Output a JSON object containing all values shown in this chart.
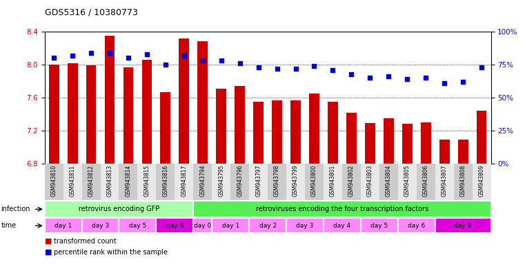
{
  "title": "GDS5316 / 10380773",
  "samples": [
    "GSM943810",
    "GSM943811",
    "GSM943812",
    "GSM943813",
    "GSM943814",
    "GSM943815",
    "GSM943816",
    "GSM943817",
    "GSM943794",
    "GSM943795",
    "GSM943796",
    "GSM943797",
    "GSM943798",
    "GSM943799",
    "GSM943800",
    "GSM943801",
    "GSM943802",
    "GSM943803",
    "GSM943804",
    "GSM943805",
    "GSM943806",
    "GSM943807",
    "GSM943808",
    "GSM943809"
  ],
  "bar_values": [
    8.0,
    8.02,
    7.99,
    8.35,
    7.97,
    8.06,
    7.67,
    8.32,
    8.28,
    7.71,
    7.74,
    7.55,
    7.57,
    7.57,
    7.65,
    7.55,
    7.42,
    7.29,
    7.35,
    7.28,
    7.3,
    7.09,
    7.09,
    7.44
  ],
  "percentile_values": [
    80,
    82,
    84,
    84,
    80,
    83,
    75,
    82,
    78,
    78,
    76,
    73,
    72,
    72,
    74,
    71,
    68,
    65,
    66,
    64,
    65,
    61,
    62,
    73
  ],
  "bar_color": "#cc0000",
  "percentile_color": "#0000cc",
  "ylim": [
    6.8,
    8.4
  ],
  "y2lim": [
    0,
    100
  ],
  "yticks": [
    6.8,
    7.2,
    7.6,
    8.0,
    8.4
  ],
  "y2ticks": [
    0,
    25,
    50,
    75,
    100
  ],
  "y2ticklabels": [
    "0%",
    "25%",
    "50%",
    "75%",
    "100%"
  ],
  "infection_groups": [
    {
      "label": "retrovirus encoding GFP",
      "start": 0,
      "end": 8,
      "color": "#aaffaa"
    },
    {
      "label": "retroviruses encoding the four transcription factors",
      "start": 8,
      "end": 24,
      "color": "#55ee55"
    }
  ],
  "time_groups": [
    {
      "label": "day 1",
      "start": 0,
      "end": 2,
      "color": "#ff88ff"
    },
    {
      "label": "day 3",
      "start": 2,
      "end": 4,
      "color": "#ff88ff"
    },
    {
      "label": "day 5",
      "start": 4,
      "end": 6,
      "color": "#ff88ff"
    },
    {
      "label": "day 8",
      "start": 6,
      "end": 8,
      "color": "#dd00dd"
    },
    {
      "label": "day 0",
      "start": 8,
      "end": 9,
      "color": "#ff88ff"
    },
    {
      "label": "day 1",
      "start": 9,
      "end": 11,
      "color": "#ff88ff"
    },
    {
      "label": "day 2",
      "start": 11,
      "end": 13,
      "color": "#ff88ff"
    },
    {
      "label": "day 3",
      "start": 13,
      "end": 15,
      "color": "#ff88ff"
    },
    {
      "label": "day 4",
      "start": 15,
      "end": 17,
      "color": "#ff88ff"
    },
    {
      "label": "day 5",
      "start": 17,
      "end": 19,
      "color": "#ff88ff"
    },
    {
      "label": "day 6",
      "start": 19,
      "end": 21,
      "color": "#ff88ff"
    },
    {
      "label": "day 8",
      "start": 21,
      "end": 24,
      "color": "#dd00dd"
    }
  ],
  "legend_bar_label": "transformed count",
  "legend_pct_label": "percentile rank within the sample"
}
